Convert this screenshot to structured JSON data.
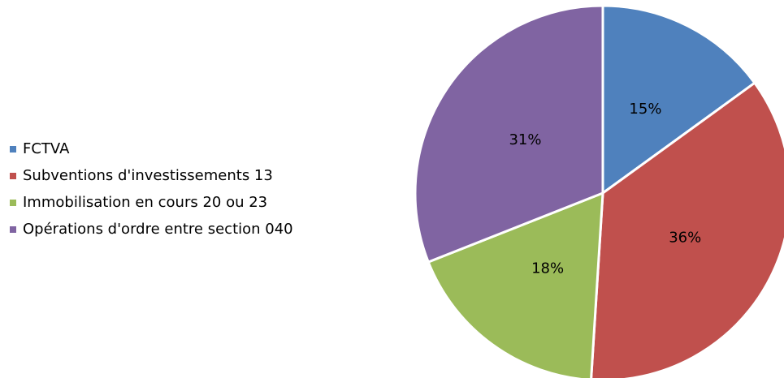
{
  "chart_data": {
    "type": "pie",
    "categories": [
      "FCTVA",
      "Subventions d'investissements 13",
      "Immobilisation en cours  20 ou 23",
      "Opérations d'ordre entre section 040"
    ],
    "values": [
      15,
      36,
      18,
      31
    ],
    "value_labels": [
      "15%",
      "36%",
      "18%",
      "31%"
    ],
    "colors": [
      "#4f81bd",
      "#c0504d",
      "#9bbb59",
      "#8064a2"
    ],
    "legend": "left"
  }
}
